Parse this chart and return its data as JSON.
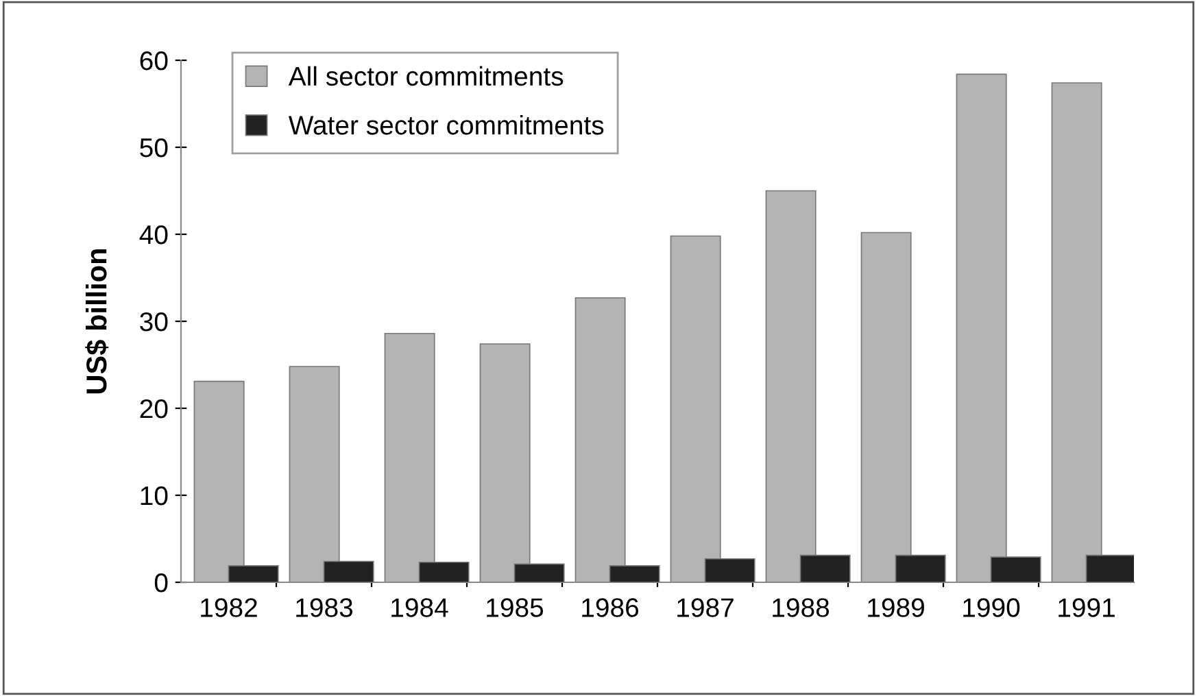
{
  "chart_data": {
    "type": "bar",
    "ylabel": "US$ billion",
    "categories": [
      "1982",
      "1983",
      "1984",
      "1985",
      "1986",
      "1987",
      "1988",
      "1989",
      "1990",
      "1991"
    ],
    "series": [
      {
        "name": "All sector commitments",
        "color": "#b4b4b4",
        "values": [
          23.1,
          24.8,
          28.6,
          27.4,
          32.7,
          39.8,
          45.0,
          40.2,
          58.4,
          57.4
        ]
      },
      {
        "name": "Water sector commitments",
        "color": "#222222",
        "values": [
          1.9,
          2.4,
          2.3,
          2.1,
          1.9,
          2.7,
          3.1,
          3.1,
          2.9,
          3.1
        ]
      }
    ],
    "ylim": [
      0,
      60
    ],
    "yticks": [
      0,
      10,
      20,
      30,
      40,
      50,
      60
    ],
    "grid": false,
    "legend": "top left"
  }
}
